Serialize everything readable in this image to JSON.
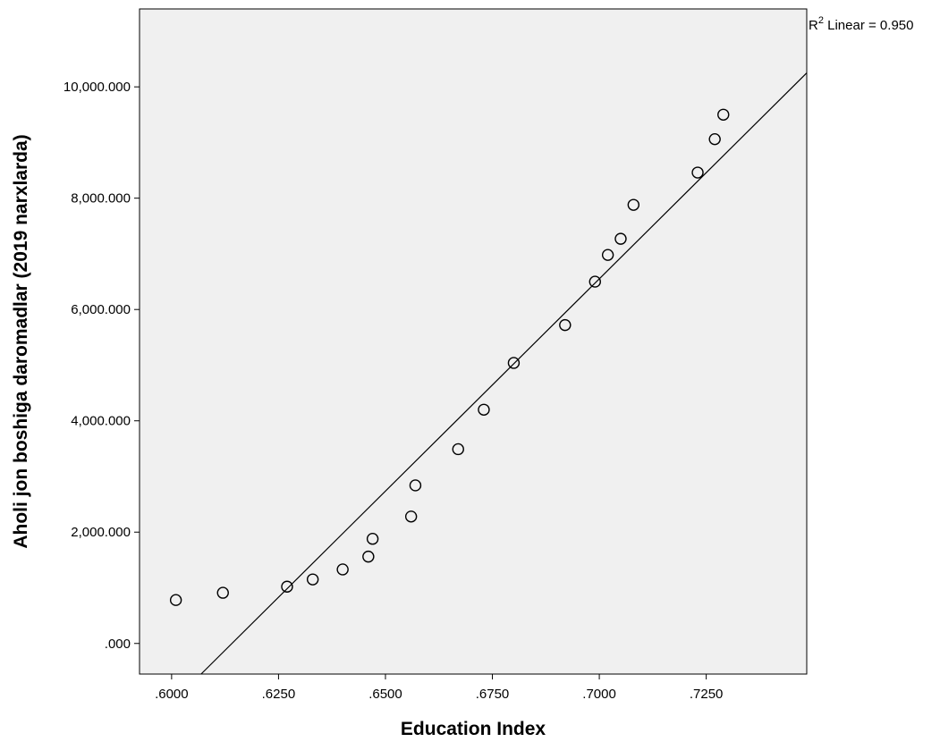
{
  "chart_data": {
    "type": "scatter",
    "title": "",
    "xlabel": "Education Index",
    "ylabel": "Aholi jon boshiga daromadlar (2019 narxlarda)",
    "xlim": [
      0.5925,
      0.7485
    ],
    "ylim": [
      -550,
      11400
    ],
    "x_ticks": [
      0.6,
      0.625,
      0.65,
      0.675,
      0.7,
      0.725
    ],
    "x_tick_labels": [
      ".6000",
      ".6250",
      ".6500",
      ".6750",
      ".7000",
      ".7250"
    ],
    "y_ticks": [
      0,
      2000,
      4000,
      6000,
      8000,
      10000
    ],
    "y_tick_labels": [
      ".000",
      "2,000.000",
      "4,000.000",
      "6,000.000",
      "8,000.000",
      "10,000.000"
    ],
    "grid": false,
    "background": "#f0f0f0",
    "marker_color": "#000000",
    "points": [
      {
        "x": 0.601,
        "y": 780
      },
      {
        "x": 0.612,
        "y": 910
      },
      {
        "x": 0.627,
        "y": 1020
      },
      {
        "x": 0.633,
        "y": 1150
      },
      {
        "x": 0.64,
        "y": 1330
      },
      {
        "x": 0.646,
        "y": 1560
      },
      {
        "x": 0.647,
        "y": 1880
      },
      {
        "x": 0.656,
        "y": 2280
      },
      {
        "x": 0.657,
        "y": 2840
      },
      {
        "x": 0.667,
        "y": 3490
      },
      {
        "x": 0.673,
        "y": 4200
      },
      {
        "x": 0.68,
        "y": 5040
      },
      {
        "x": 0.692,
        "y": 5720
      },
      {
        "x": 0.699,
        "y": 6500
      },
      {
        "x": 0.702,
        "y": 6980
      },
      {
        "x": 0.705,
        "y": 7270
      },
      {
        "x": 0.708,
        "y": 7880
      },
      {
        "x": 0.723,
        "y": 8460
      },
      {
        "x": 0.727,
        "y": 9060
      },
      {
        "x": 0.729,
        "y": 9500
      }
    ],
    "fit_line": {
      "type": "linear",
      "start": {
        "x": 0.6069,
        "y": -550
      },
      "end": {
        "x": 0.7485,
        "y": 10250
      }
    },
    "annotation": {
      "r2_prefix": "R",
      "r2_superscript": "2",
      "r2_text": " Linear = 0.950"
    }
  }
}
